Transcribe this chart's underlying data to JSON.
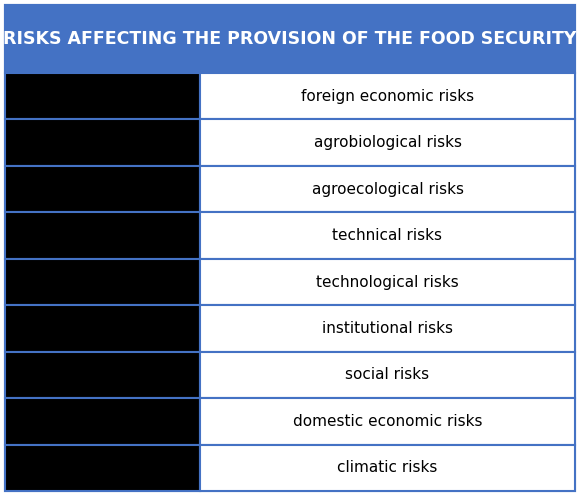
{
  "title": "RISKS AFFECTING THE PROVISION OF THE FOOD SECURITY",
  "title_bg_color": "#4472C4",
  "title_text_color": "#FFFFFF",
  "title_fontsize": 12.5,
  "items": [
    "foreign economic risks",
    "agrobiological risks",
    "agroecological risks",
    "technical risks",
    "technological risks",
    "institutional risks",
    "social risks",
    "domestic economic risks",
    "climatic risks"
  ],
  "box_bg_color": "#FFFFFF",
  "box_edge_color": "#4472C4",
  "item_fontsize": 11,
  "fig_bg_color": "#FFFFFF",
  "outer_border_color": "#4472C4",
  "left_cell_bg": "#000000",
  "fig_width": 5.8,
  "fig_height": 4.96,
  "dpi": 100
}
